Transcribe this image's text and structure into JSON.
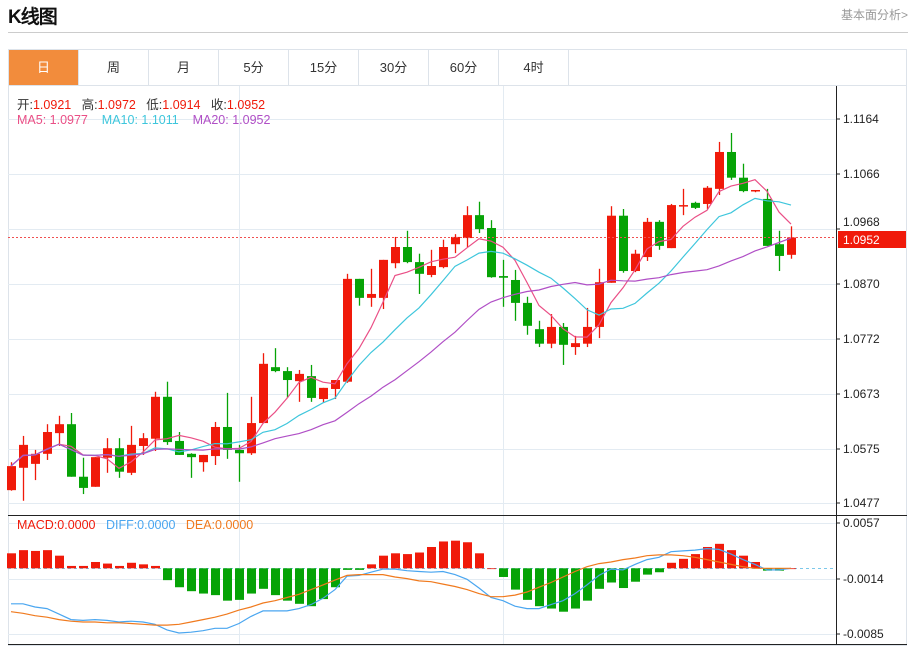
{
  "header": {
    "title": "K线图",
    "link": "基本面分析>"
  },
  "tabs": [
    {
      "label": "日",
      "active": true
    },
    {
      "label": "周"
    },
    {
      "label": "月"
    },
    {
      "label": "5分"
    },
    {
      "label": "15分"
    },
    {
      "label": "30分"
    },
    {
      "label": "60分"
    },
    {
      "label": "4时"
    }
  ],
  "ohlc_legend": {
    "open_label": "开:",
    "open": "1.0921",
    "high_label": "高:",
    "high": "1.0972",
    "low_label": "低:",
    "low": "1.0914",
    "close_label": "收:",
    "close": "1.0952"
  },
  "ma_legend": {
    "ma5": "MA5: 1.0977",
    "ma10": "MA10: 1.1011",
    "ma20": "MA20: 1.0952"
  },
  "macd_legend": {
    "macd": "MACD:0.0000",
    "diff": "DIFF:0.0000",
    "dea": "DEA:0.0000"
  },
  "colors": {
    "up": "#f01a0a",
    "down": "#06a306",
    "ma5": "#ea4f86",
    "ma10": "#3ec6dc",
    "ma20": "#b04fc6",
    "diff": "#4aa6f0",
    "dea": "#f07a1e",
    "accent": "#f28c3c"
  },
  "chart_data": [
    {
      "type": "candlestick",
      "title": "K线图",
      "price_axis": {
        "ticks": [
          "1.1164",
          "1.1066",
          "1.0968",
          "1.0870",
          "1.0772",
          "1.0673",
          "1.0575",
          "1.0477"
        ],
        "range": [
          1.0477,
          1.1164
        ]
      },
      "last_price": "1.0952",
      "ohlc": [
        [
          1.05,
          1.055,
          1.0499,
          1.0543
        ],
        [
          1.054,
          1.0597,
          1.0481,
          1.0581
        ],
        [
          1.0547,
          1.0572,
          1.0518,
          1.0565
        ],
        [
          1.0565,
          1.0618,
          1.0554,
          1.0604
        ],
        [
          1.0602,
          1.0633,
          1.0579,
          1.0618
        ],
        [
          1.0618,
          1.0638,
          1.0524,
          1.0524
        ],
        [
          1.0524,
          1.0558,
          1.0493,
          1.0504
        ],
        [
          1.0506,
          1.0559,
          1.0506,
          1.0559
        ],
        [
          1.0558,
          1.0593,
          1.0531,
          1.0575
        ],
        [
          1.0575,
          1.0593,
          1.0522,
          1.0533
        ],
        [
          1.0531,
          1.0615,
          1.0527,
          1.0581
        ],
        [
          1.0579,
          1.0602,
          1.0563,
          1.0593
        ],
        [
          1.0592,
          1.0676,
          1.057,
          1.0667
        ],
        [
          1.0667,
          1.0694,
          1.0581,
          1.0586
        ],
        [
          1.0588,
          1.0604,
          1.0563,
          1.0563
        ],
        [
          1.0565,
          1.0566,
          1.0522,
          1.0559
        ],
        [
          1.055,
          1.0563,
          1.0533,
          1.0563
        ],
        [
          1.0561,
          1.0622,
          1.0545,
          1.0613
        ],
        [
          1.0613,
          1.0674,
          1.0556,
          1.0572
        ],
        [
          1.0572,
          1.0581,
          1.0515,
          1.0566
        ],
        [
          1.0566,
          1.0667,
          1.0563,
          1.062
        ],
        [
          1.062,
          1.0745,
          1.062,
          1.0726
        ],
        [
          1.072,
          1.0754,
          1.0711,
          1.0713
        ],
        [
          1.0713,
          1.072,
          1.0665,
          1.0697
        ],
        [
          1.0695,
          1.0715,
          1.0658,
          1.0708
        ],
        [
          1.0704,
          1.0724,
          1.0658,
          1.0665
        ],
        [
          1.0663,
          1.0683,
          1.0656,
          1.0683
        ],
        [
          1.0681,
          1.0697,
          1.0663,
          1.0697
        ],
        [
          1.0694,
          1.0887,
          1.0692,
          1.0878
        ],
        [
          1.0878,
          1.0878,
          1.083,
          1.0844
        ],
        [
          1.0844,
          1.0896,
          1.0828,
          1.0851
        ],
        [
          1.0844,
          1.0912,
          1.0824,
          1.0912
        ],
        [
          1.0906,
          1.0953,
          1.0897,
          1.0935
        ],
        [
          1.0935,
          1.0964,
          1.0906,
          1.0908
        ],
        [
          1.0908,
          1.0923,
          1.0851,
          1.0887
        ],
        [
          1.0885,
          1.093,
          1.0881,
          1.0901
        ],
        [
          1.0899,
          1.0948,
          1.0897,
          1.0935
        ],
        [
          1.094,
          1.0958,
          1.0924,
          1.0953
        ],
        [
          1.0951,
          1.1008,
          1.0935,
          1.0992
        ],
        [
          1.0992,
          1.1016,
          1.096,
          1.0967
        ],
        [
          1.0969,
          1.0983,
          1.088,
          1.0881
        ],
        [
          1.0883,
          1.0912,
          1.0828,
          1.088
        ],
        [
          1.0876,
          1.0894,
          1.0803,
          1.0835
        ],
        [
          1.0835,
          1.0846,
          1.0778,
          1.0794
        ],
        [
          1.0788,
          1.0803,
          1.0756,
          1.0762
        ],
        [
          1.0762,
          1.0815,
          1.0754,
          1.0792
        ],
        [
          1.0792,
          1.0799,
          1.0724,
          1.076
        ],
        [
          1.0756,
          1.0776,
          1.0742,
          1.0763
        ],
        [
          1.0762,
          1.0826,
          1.0756,
          1.0792
        ],
        [
          1.0792,
          1.0896,
          1.0772,
          1.0872
        ],
        [
          1.0871,
          1.1008,
          1.0871,
          1.0991
        ],
        [
          1.0991,
          1.1003,
          1.0889,
          1.0892
        ],
        [
          1.0892,
          1.093,
          1.089,
          1.0923
        ],
        [
          1.0917,
          1.0987,
          1.091,
          1.098
        ],
        [
          1.098,
          1.0983,
          1.093,
          1.0937
        ],
        [
          1.0933,
          1.1012,
          1.0933,
          1.101
        ],
        [
          1.1008,
          1.1039,
          1.0992,
          1.101
        ],
        [
          1.1014,
          1.1016,
          1.1003,
          1.1005
        ],
        [
          1.1012,
          1.1044,
          1.1003,
          1.1041
        ],
        [
          1.1039,
          1.1123,
          1.1028,
          1.1105
        ],
        [
          1.1105,
          1.1139,
          1.1055,
          1.1059
        ],
        [
          1.1059,
          1.1084,
          1.1033,
          1.1035
        ],
        [
          1.1035,
          1.1037,
          1.1033,
          1.1037
        ],
        [
          1.1021,
          1.1039,
          1.0937,
          1.0937
        ],
        [
          1.094,
          1.0964,
          1.0892,
          1.0919
        ],
        [
          1.0921,
          1.0972,
          1.0914,
          1.0952
        ]
      ],
      "ma_periods": [
        5,
        10,
        20
      ]
    },
    {
      "type": "macd",
      "axis": {
        "ticks": [
          "0.0057",
          "-0.0014",
          "-0.0085"
        ],
        "range": [
          -0.0085,
          0.0057
        ]
      },
      "histogram": [
        0.0019,
        0.0023,
        0.0022,
        0.0023,
        0.0016,
        0.0003,
        0.0003,
        0.0008,
        0.0006,
        0.0003,
        0.0007,
        0.0005,
        0.0003,
        -0.0015,
        -0.0024,
        -0.0029,
        -0.0032,
        -0.0034,
        -0.0041,
        -0.004,
        -0.0032,
        -0.0026,
        -0.0034,
        -0.0041,
        -0.0045,
        -0.0048,
        -0.0039,
        -0.0024,
        -0.0002,
        -0.0002,
        0.0005,
        0.0016,
        0.0019,
        0.0018,
        0.002,
        0.0027,
        0.0034,
        0.0035,
        0.0033,
        0.0019,
        0.0,
        -0.0011,
        -0.0027,
        -0.004,
        -0.0048,
        -0.0051,
        -0.0055,
        -0.0051,
        -0.0041,
        -0.0026,
        -0.0018,
        -0.0025,
        -0.0017,
        -0.0008,
        -0.0005,
        0.0007,
        0.0012,
        0.0018,
        0.0027,
        0.0031,
        0.0023,
        0.0016,
        0.0008,
        -0.0003,
        -0.0003,
        0.0
      ],
      "diff": [
        -0.0045,
        -0.0045,
        -0.0049,
        -0.0051,
        -0.0058,
        -0.0065,
        -0.0066,
        -0.0065,
        -0.0066,
        -0.0068,
        -0.0067,
        -0.0068,
        -0.0071,
        -0.0078,
        -0.0082,
        -0.0081,
        -0.0079,
        -0.0076,
        -0.0076,
        -0.007,
        -0.0061,
        -0.0054,
        -0.0054,
        -0.0054,
        -0.0051,
        -0.0046,
        -0.0038,
        -0.0027,
        -0.001,
        -0.0009,
        -0.0005,
        -0.0001,
        -0.0001,
        -0.0003,
        -0.0004,
        -0.0005,
        -0.0004,
        -0.0008,
        -0.0014,
        -0.0025,
        -0.0037,
        -0.0041,
        -0.0048,
        -0.0051,
        -0.0051,
        -0.0046,
        -0.0041,
        -0.0032,
        -0.0021,
        -0.0009,
        -0.0001,
        -0.0002,
        0.0005,
        0.0011,
        0.0014,
        0.0021,
        0.0022,
        0.0023,
        0.0025,
        0.0024,
        0.0018,
        0.0011,
        0.0005,
        -0.0002,
        -0.0002,
        0.0
      ],
      "dea": [
        -0.0055,
        -0.0057,
        -0.006,
        -0.0062,
        -0.0065,
        -0.0067,
        -0.0068,
        -0.0068,
        -0.0069,
        -0.0069,
        -0.007,
        -0.0071,
        -0.0072,
        -0.0072,
        -0.0071,
        -0.0068,
        -0.0065,
        -0.0062,
        -0.0058,
        -0.0053,
        -0.0049,
        -0.0044,
        -0.0041,
        -0.0037,
        -0.0033,
        -0.0027,
        -0.0021,
        -0.0015,
        -0.0009,
        -0.0008,
        -0.0008,
        -0.0008,
        -0.0011,
        -0.0013,
        -0.0016,
        -0.0017,
        -0.002,
        -0.0023,
        -0.0027,
        -0.0032,
        -0.0036,
        -0.0036,
        -0.0034,
        -0.003,
        -0.0024,
        -0.0018,
        -0.0011,
        -0.0004,
        0.0002,
        0.0006,
        0.0008,
        0.0011,
        0.0013,
        0.0016,
        0.0017,
        0.0017,
        0.0016,
        0.0014,
        0.0011,
        0.0008,
        0.0005,
        0.0002,
        0.0,
        0.0,
        0.0,
        0.0
      ]
    }
  ]
}
